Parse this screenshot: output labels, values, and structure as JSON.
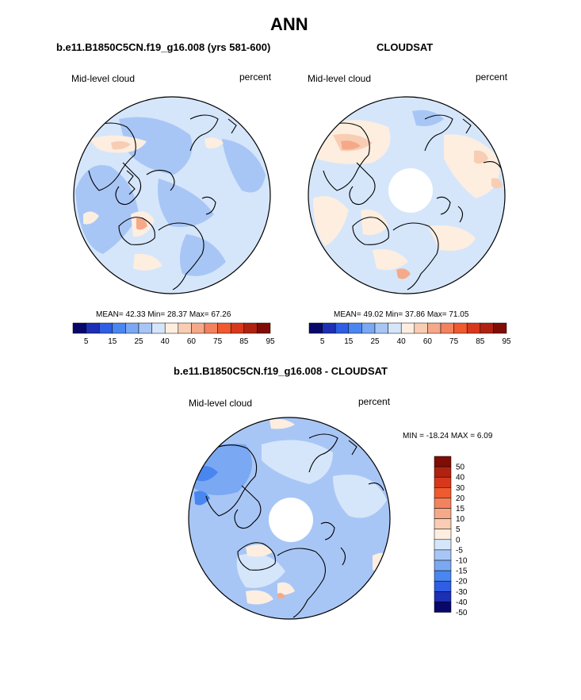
{
  "page_title": "ANN",
  "panels": [
    {
      "subtitle": "b.e11.B1850C5CN.f19_g16.008 (yrs 581-600)",
      "left_label": "Mid-level cloud",
      "right_label": "percent",
      "stats": "MEAN=  42.33  Min=  28.37  Max=  67.26"
    },
    {
      "subtitle": "CLOUDSAT",
      "left_label": "Mid-level cloud",
      "right_label": "percent",
      "stats": "MEAN=  49.02  Min=  37.86  Max=  71.05"
    },
    {
      "subtitle": "b.e11.B1850C5CN.f19_g16.008 - CLOUDSAT",
      "left_label": "Mid-level cloud",
      "right_label": "percent",
      "stats": "MIN = -18.24 MAX =   6.09"
    }
  ],
  "colorbar_abs": {
    "colors": [
      "#08086b",
      "#1c2fb5",
      "#2f5de3",
      "#4a86f0",
      "#7aa8f2",
      "#a8c6f5",
      "#d5e6fb",
      "#fdeee0",
      "#f8cdb3",
      "#f5a989",
      "#f3825e",
      "#ef5a2f",
      "#d7381c",
      "#b02210",
      "#7f0d05"
    ],
    "tick_labels": [
      "5",
      "15",
      "25",
      "40",
      "60",
      "75",
      "85",
      "95"
    ]
  },
  "colorbar_diff": {
    "colors_top_to_bottom": [
      "#7f0d05",
      "#b02210",
      "#d7381c",
      "#ef5a2f",
      "#f3825e",
      "#f5a989",
      "#f8cdb3",
      "#fdeee0",
      "#d5e6fb",
      "#a8c6f5",
      "#7aa8f2",
      "#4a86f0",
      "#2f5de3",
      "#1c2fb5",
      "#08086b"
    ],
    "tick_labels": [
      "50",
      "40",
      "30",
      "20",
      "15",
      "10",
      "5",
      "0",
      "-5",
      "-10",
      "-15",
      "-20",
      "-30",
      "-40",
      "-50"
    ]
  }
}
